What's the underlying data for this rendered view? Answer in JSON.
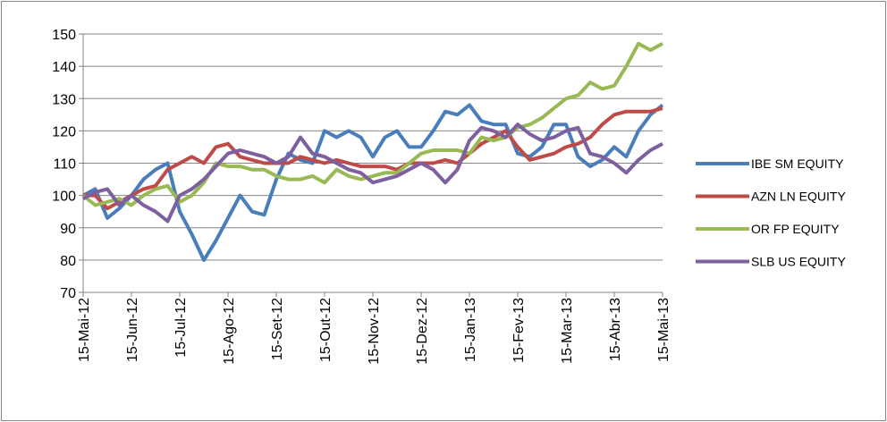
{
  "chart_data": {
    "type": "line",
    "categories": [
      "15-Mai-12",
      null,
      null,
      null,
      "15-Jun-12",
      null,
      null,
      null,
      "15-Jul-12",
      null,
      null,
      null,
      "15-Ago-12",
      null,
      null,
      null,
      "15-Set-12",
      null,
      null,
      null,
      "15-Out-12",
      null,
      null,
      null,
      "15-Nov-12",
      null,
      null,
      null,
      "15-Dez-12",
      null,
      null,
      null,
      "15-Jan-13",
      null,
      null,
      null,
      "15-Fev-13",
      null,
      null,
      null,
      "15-Mar-13",
      null,
      null,
      null,
      "15-Abr-13",
      null,
      null,
      null,
      "15-Mai-13"
    ],
    "series": [
      {
        "name": "IBE SM EQUITY",
        "color": "#4a7ebb",
        "values": [
          100,
          102,
          93,
          96,
          100,
          105,
          108,
          110,
          95,
          88,
          80,
          86,
          93,
          100,
          95,
          94,
          105,
          113,
          111,
          110,
          120,
          118,
          120,
          118,
          112,
          118,
          120,
          115,
          115,
          120,
          126,
          125,
          128,
          123,
          122,
          122,
          113,
          112,
          115,
          122,
          122,
          112,
          109,
          111,
          115,
          112,
          120,
          125,
          128
        ]
      },
      {
        "name": "AZN LN EQUITY",
        "color": "#be4b48",
        "values": [
          100,
          100,
          96,
          98,
          100,
          102,
          103,
          108,
          110,
          112,
          110,
          115,
          116,
          112,
          111,
          110,
          110,
          110,
          112,
          111,
          110,
          111,
          110,
          109,
          109,
          109,
          108,
          110,
          110,
          110,
          111,
          110,
          113,
          116,
          118,
          120,
          115,
          111,
          112,
          113,
          115,
          116,
          118,
          122,
          125,
          126,
          126,
          126,
          127
        ]
      },
      {
        "name": "OR FP EQUITY",
        "color": "#98b954",
        "values": [
          100,
          97,
          98,
          99,
          97,
          100,
          102,
          103,
          98,
          100,
          104,
          110,
          109,
          109,
          108,
          108,
          106,
          105,
          105,
          106,
          104,
          108,
          106,
          105,
          106,
          107,
          107,
          110,
          113,
          114,
          114,
          114,
          113,
          118,
          117,
          118,
          121,
          122,
          124,
          127,
          130,
          131,
          135,
          133,
          134,
          140,
          147,
          145,
          147
        ]
      },
      {
        "name": "SLB US EQUITY",
        "color": "#7d60a0",
        "values": [
          99,
          101,
          102,
          97,
          100,
          97,
          95,
          92,
          100,
          102,
          105,
          109,
          113,
          114,
          113,
          112,
          110,
          112,
          118,
          113,
          112,
          110,
          108,
          107,
          104,
          105,
          106,
          108,
          110,
          108,
          104,
          108,
          117,
          121,
          120,
          118,
          122,
          119,
          117,
          118,
          120,
          121,
          113,
          112,
          110,
          107,
          111,
          114,
          116
        ]
      }
    ],
    "ylim": [
      70,
      150
    ],
    "yticks": [
      70,
      80,
      90,
      100,
      110,
      120,
      130,
      140,
      150
    ],
    "grid": true,
    "legend": "right"
  }
}
